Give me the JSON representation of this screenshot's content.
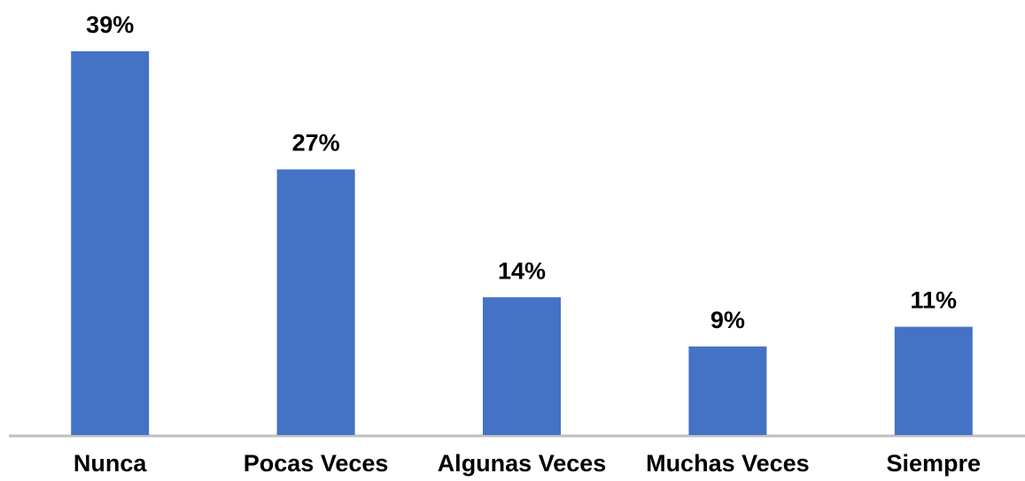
{
  "chart_data": {
    "type": "bar",
    "categories": [
      "Nunca",
      "Pocas Veces",
      "Algunas Veces",
      "Muchas Veces",
      "Siempre"
    ],
    "values": [
      39,
      27,
      14,
      9,
      11
    ],
    "value_labels": [
      "39%",
      "27%",
      "14%",
      "9%",
      "11%"
    ],
    "color": "#4472c4"
  }
}
